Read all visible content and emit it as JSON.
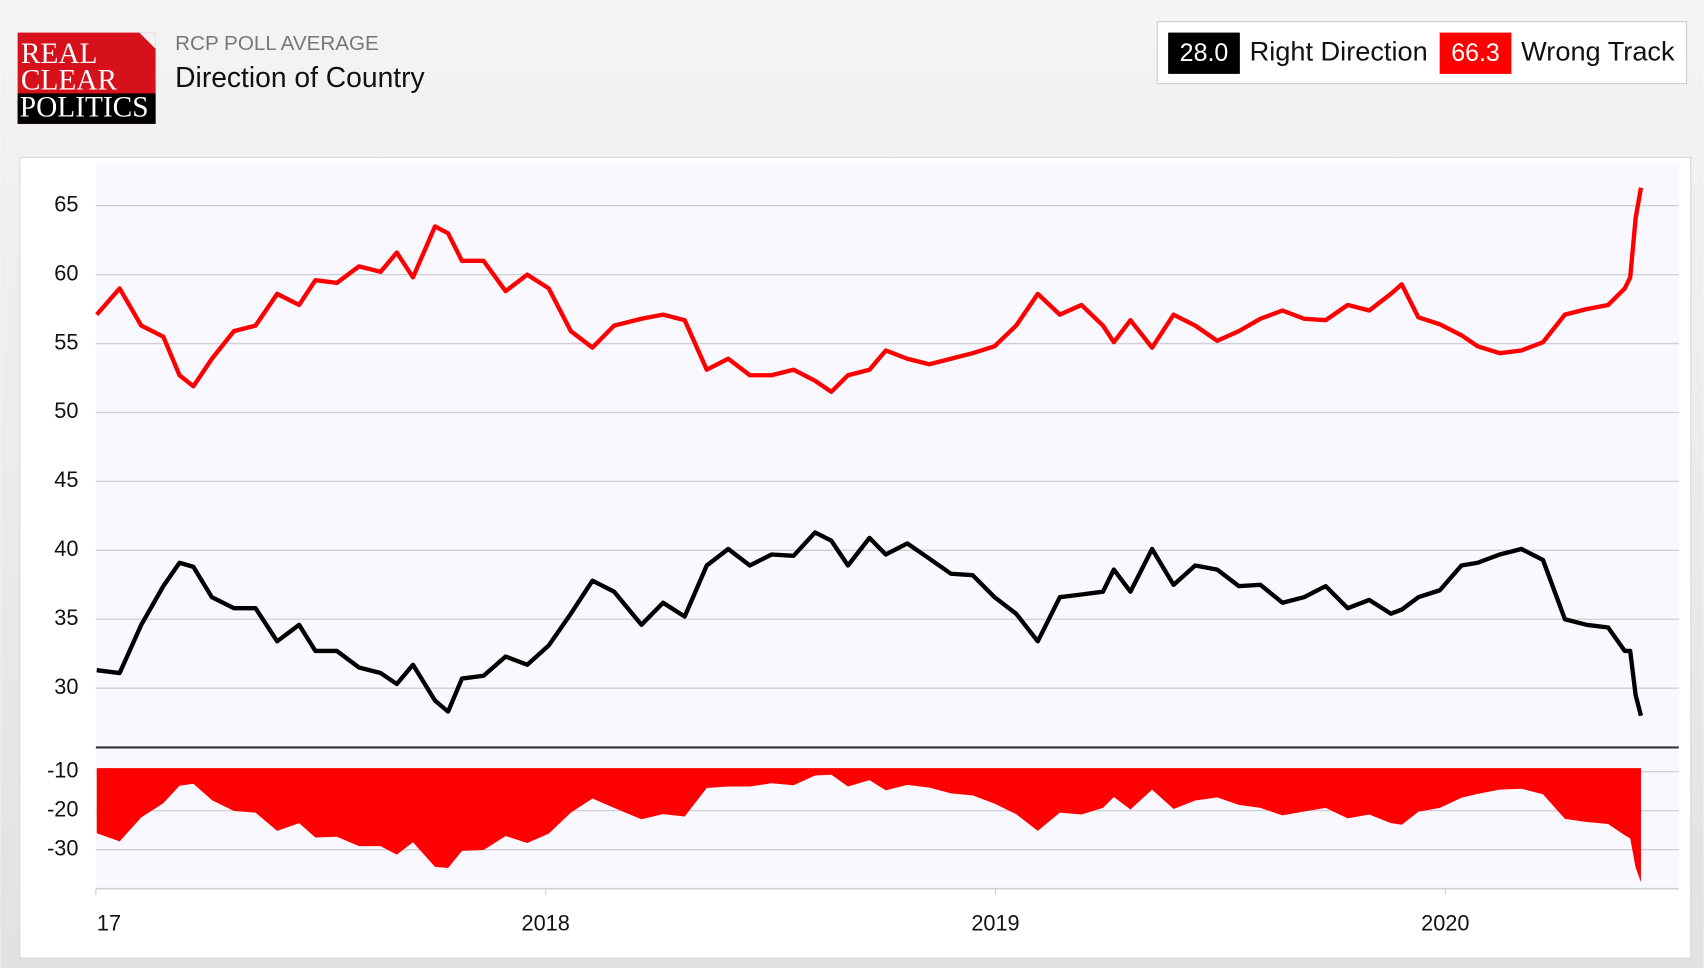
{
  "header": {
    "logo": [
      "REAL",
      "CLEAR",
      "POLITICS"
    ],
    "kicker": "RCP POLL AVERAGE",
    "title": "Direction of Country"
  },
  "chart_data": [
    {
      "type": "line",
      "legend": "top-right",
      "grid": true,
      "x": [
        2017.002,
        2017.053,
        2017.101,
        2017.15,
        2017.186,
        2017.217,
        2017.258,
        2017.307,
        2017.355,
        2017.403,
        2017.452,
        2017.488,
        2017.536,
        2017.585,
        2017.633,
        2017.669,
        2017.705,
        2017.754,
        2017.783,
        2017.814,
        2017.862,
        2017.911,
        2017.959,
        2018.007,
        2018.056,
        2018.104,
        2018.152,
        2018.213,
        2018.261,
        2018.309,
        2018.358,
        2018.406,
        2018.454,
        2018.502,
        2018.551,
        2018.599,
        2018.635,
        2018.672,
        2018.72,
        2018.756,
        2018.804,
        2018.853,
        2018.901,
        2018.949,
        2018.998,
        2019.046,
        2019.094,
        2019.143,
        2019.191,
        2019.239,
        2019.263,
        2019.3,
        2019.348,
        2019.396,
        2019.444,
        2019.493,
        2019.541,
        2019.589,
        2019.638,
        2019.686,
        2019.734,
        2019.783,
        2019.831,
        2019.879,
        2019.903,
        2019.94,
        2019.988,
        2020.036,
        2020.072,
        2020.121,
        2020.169,
        2020.217,
        2020.266,
        2020.314,
        2020.362,
        2020.399,
        2020.411,
        2020.423,
        2020.435
      ],
      "series": [
        {
          "name": "Right Direction",
          "color": "#000000",
          "latest_label": "28.0",
          "values": [
            31.3,
            31.1,
            34.6,
            37.4,
            39.1,
            38.8,
            36.6,
            35.8,
            35.8,
            33.4,
            34.6,
            32.7,
            32.7,
            31.5,
            31.1,
            30.3,
            31.7,
            29.1,
            28.3,
            30.7,
            30.9,
            32.3,
            31.7,
            33.1,
            35.4,
            37.8,
            37,
            34.6,
            36.2,
            35.2,
            38.9,
            40.1,
            38.9,
            39.7,
            39.6,
            41.3,
            40.7,
            38.9,
            40.9,
            39.7,
            40.5,
            39.4,
            38.3,
            38.2,
            36.6,
            35.4,
            33.4,
            36.6,
            36.8,
            37,
            38.6,
            37,
            40.1,
            37.5,
            38.9,
            38.6,
            37.4,
            37.5,
            36.2,
            36.6,
            37.4,
            35.8,
            36.4,
            35.4,
            35.7,
            36.6,
            37.1,
            38.9,
            39.1,
            39.7,
            40.1,
            39.3,
            35,
            34.6,
            34.4,
            32.7,
            32.7,
            29.5,
            28
          ]
        },
        {
          "name": "Wrong Track",
          "color": "#ff0000",
          "latest_label": "66.3",
          "values": [
            57.1,
            59,
            56.3,
            55.5,
            52.7,
            51.9,
            53.9,
            55.9,
            56.3,
            58.6,
            57.8,
            59.6,
            59.4,
            60.6,
            60.2,
            61.6,
            59.8,
            63.5,
            63,
            61,
            61,
            58.8,
            60,
            59,
            55.9,
            54.7,
            56.3,
            56.8,
            57.1,
            56.7,
            53.1,
            53.9,
            52.7,
            52.7,
            53.1,
            52.3,
            51.5,
            52.7,
            53.1,
            54.5,
            53.9,
            53.5,
            53.9,
            54.3,
            54.8,
            56.3,
            58.6,
            57.1,
            57.8,
            56.3,
            55.1,
            56.7,
            54.7,
            57.1,
            56.3,
            55.2,
            55.9,
            56.8,
            57.4,
            56.8,
            56.7,
            57.8,
            57.4,
            58.6,
            59.3,
            56.9,
            56.4,
            55.6,
            54.8,
            54.3,
            54.5,
            55.1,
            57.1,
            57.5,
            57.8,
            59,
            59.8,
            64.1,
            66.3
          ]
        }
      ],
      "xlim": [
        2017.0,
        2020.519
      ],
      "ylim": [
        25.7,
        68.1
      ],
      "yticks": [
        30,
        35,
        40,
        45,
        50,
        55,
        60,
        65
      ]
    },
    {
      "type": "area",
      "color": "#ff0000",
      "grid": true,
      "x": [
        2017.002,
        2017.053,
        2017.101,
        2017.15,
        2017.186,
        2017.217,
        2017.258,
        2017.307,
        2017.355,
        2017.403,
        2017.452,
        2017.488,
        2017.536,
        2017.585,
        2017.633,
        2017.669,
        2017.705,
        2017.754,
        2017.783,
        2017.814,
        2017.862,
        2017.911,
        2017.959,
        2018.007,
        2018.056,
        2018.104,
        2018.152,
        2018.213,
        2018.261,
        2018.309,
        2018.358,
        2018.406,
        2018.454,
        2018.502,
        2018.551,
        2018.599,
        2018.635,
        2018.672,
        2018.72,
        2018.756,
        2018.804,
        2018.853,
        2018.901,
        2018.949,
        2018.998,
        2019.046,
        2019.094,
        2019.143,
        2019.191,
        2019.239,
        2019.263,
        2019.3,
        2019.348,
        2019.396,
        2019.444,
        2019.493,
        2019.541,
        2019.589,
        2019.638,
        2019.686,
        2019.734,
        2019.783,
        2019.831,
        2019.879,
        2019.903,
        2019.94,
        2019.988,
        2020.036,
        2020.072,
        2020.121,
        2020.169,
        2020.217,
        2020.266,
        2020.314,
        2020.362,
        2020.399,
        2020.411,
        2020.423,
        2020.435
      ],
      "values": [
        -25.8,
        -27.9,
        -21.7,
        -18.1,
        -13.6,
        -13.1,
        -17.3,
        -20.1,
        -20.5,
        -25.2,
        -23.2,
        -26.9,
        -26.7,
        -29.1,
        -29.1,
        -31.3,
        -28.1,
        -34.4,
        -34.7,
        -30.3,
        -30.1,
        -26.5,
        -28.3,
        -25.9,
        -20.5,
        -16.9,
        -19.3,
        -22.2,
        -20.9,
        -21.5,
        -14.2,
        -13.8,
        -13.8,
        -13,
        -13.5,
        -11,
        -10.8,
        -13.8,
        -12.2,
        -14.8,
        -13.4,
        -14.1,
        -15.6,
        -16.1,
        -18.2,
        -20.9,
        -25.2,
        -20.5,
        -21,
        -19.3,
        -16.5,
        -19.7,
        -14.6,
        -19.6,
        -17.4,
        -16.6,
        -18.5,
        -19.3,
        -21.2,
        -20.2,
        -19.3,
        -22,
        -21,
        -23.2,
        -23.6,
        -20.3,
        -19.3,
        -16.7,
        -15.7,
        -14.6,
        -14.4,
        -15.8,
        -22.1,
        -22.9,
        -23.4,
        -26.3,
        -27.1,
        -34.6,
        -38.3
      ],
      "xlim": [
        2017.0,
        2020.519
      ],
      "ylim": [
        -40,
        -9.1
      ],
      "yticks": [
        -10,
        -20,
        -30
      ],
      "xticks": [
        {
          "value": 2017,
          "label": "17"
        },
        2018,
        2019,
        2020
      ]
    }
  ]
}
